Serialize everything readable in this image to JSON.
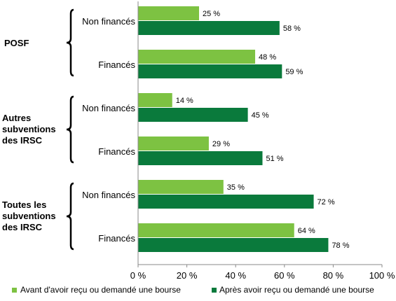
{
  "colors": {
    "before": "#7dc242",
    "after": "#0a7a3c",
    "axis": "#8a8a8a",
    "bracket": "#000000"
  },
  "chart_data": {
    "type": "bar",
    "orientation": "horizontal",
    "xlim": [
      0,
      100
    ],
    "x_ticks": [
      "0 %",
      "20 %",
      "40 %",
      "60 %",
      "80 %",
      "100 %"
    ],
    "groups": [
      {
        "label": "POSF",
        "categories": [
          {
            "label": "Non financés",
            "before": 25,
            "after": 58,
            "before_label": "25 %",
            "after_label": "58 %"
          },
          {
            "label": "Financés",
            "before": 48,
            "after": 59,
            "before_label": "48 %",
            "after_label": "59 %"
          }
        ]
      },
      {
        "label": "Autres subventions des IRSC",
        "label_lines": [
          "Autres",
          "subventions",
          "des IRSC"
        ],
        "categories": [
          {
            "label": "Non financés",
            "before": 14,
            "after": 45,
            "before_label": "14 %",
            "after_label": "45 %"
          },
          {
            "label": "Financés",
            "before": 29,
            "after": 51,
            "before_label": "29 %",
            "after_label": "51 %"
          }
        ]
      },
      {
        "label": "Toutes les subventions des IRSC",
        "label_lines": [
          "Toutes les",
          "subventions",
          "des IRSC"
        ],
        "categories": [
          {
            "label": "Non financés",
            "before": 35,
            "after": 72,
            "before_label": "35 %",
            "after_label": "72 %"
          },
          {
            "label": "Financés",
            "before": 64,
            "after": 78,
            "before_label": "64 %",
            "after_label": "78 %"
          }
        ]
      }
    ],
    "series": [
      {
        "key": "before",
        "name": "Avant d'avoir reçu ou demandé une bourse"
      },
      {
        "key": "after",
        "name": "Après avoir reçu ou demandé une bourse"
      }
    ],
    "legend_position": "bottom",
    "grid": false
  }
}
